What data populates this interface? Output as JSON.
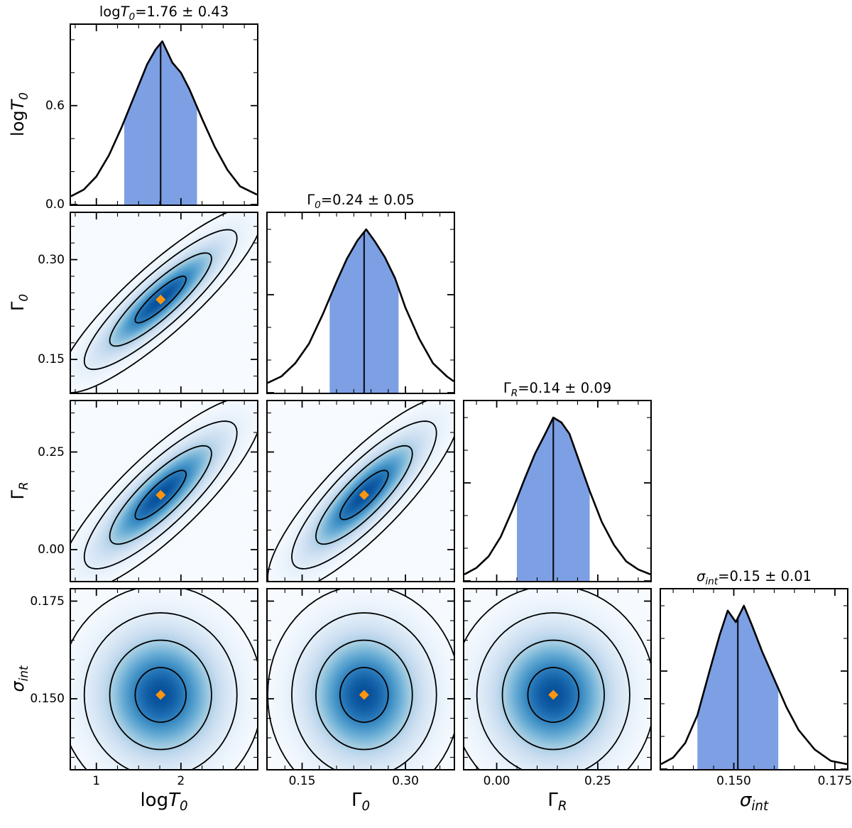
{
  "chart_data": {
    "type": "corner",
    "description_visible": false,
    "parameters": [
      {
        "id": "logT0",
        "label": "log*T*_{0}",
        "title": "log*T*_{0}=1.76 ± 0.43",
        "mean": 1.76,
        "sigma": 0.43,
        "lim": [
          0.7,
          2.9
        ],
        "ticks": [
          1,
          2
        ],
        "tick_labels": [
          "1",
          "2"
        ],
        "minor_step": 0.25,
        "hist": {
          "x": [
            0.7,
            0.85,
            1.0,
            1.15,
            1.3,
            1.45,
            1.6,
            1.7,
            1.78,
            1.9,
            2.0,
            2.1,
            2.25,
            2.4,
            2.55,
            2.7,
            2.9
          ],
          "y": [
            0.05,
            0.09,
            0.17,
            0.3,
            0.47,
            0.66,
            0.85,
            0.94,
            0.99,
            0.86,
            0.8,
            0.7,
            0.52,
            0.35,
            0.21,
            0.11,
            0.06
          ],
          "ylim": [
            0,
            1.09
          ],
          "yticks": [
            0.0,
            0.6
          ],
          "ytick_labels": [
            "0.0",
            "0.6"
          ],
          "y_minor_step": 0.2
        }
      },
      {
        "id": "G0",
        "label": "Γ_{0}",
        "title": "Γ_{0}=0.24 ± 0.05",
        "mean": 0.24,
        "sigma": 0.05,
        "lim": [
          0.1,
          0.37
        ],
        "ticks": [
          0.15,
          0.3
        ],
        "tick_labels": [
          "0.15",
          "0.30"
        ],
        "minor_step": 0.025,
        "hist": {
          "x": [
            0.1,
            0.12,
            0.14,
            0.16,
            0.18,
            0.2,
            0.215,
            0.23,
            0.243,
            0.255,
            0.27,
            0.285,
            0.3,
            0.32,
            0.34,
            0.36,
            0.37
          ],
          "y": [
            0.06,
            0.1,
            0.18,
            0.3,
            0.48,
            0.68,
            0.82,
            0.93,
            1.0,
            0.93,
            0.83,
            0.7,
            0.52,
            0.33,
            0.18,
            0.1,
            0.07
          ],
          "ylim": [
            0,
            1.1
          ],
          "yticks": [
            0.0,
            0.6
          ],
          "ytick_labels": null,
          "y_minor_step": 0.2
        }
      },
      {
        "id": "GR",
        "label": "Γ_{R}",
        "title": "Γ_{R}=0.14 ± 0.09",
        "mean": 0.14,
        "sigma": 0.09,
        "lim": [
          -0.08,
          0.38
        ],
        "ticks": [
          0.0,
          0.25
        ],
        "tick_labels": [
          "0.00",
          "0.25"
        ],
        "minor_step": 0.05,
        "hist": {
          "x": [
            -0.08,
            -0.05,
            -0.02,
            0.01,
            0.04,
            0.07,
            0.095,
            0.12,
            0.14,
            0.16,
            0.18,
            0.2,
            0.23,
            0.26,
            0.29,
            0.32,
            0.35,
            0.38
          ],
          "y": [
            0.04,
            0.08,
            0.15,
            0.27,
            0.44,
            0.63,
            0.78,
            0.9,
            1.0,
            0.97,
            0.9,
            0.76,
            0.55,
            0.36,
            0.22,
            0.12,
            0.07,
            0.04
          ],
          "ylim": [
            0,
            1.1
          ],
          "yticks": [
            0.0,
            0.6
          ],
          "ytick_labels": null,
          "y_minor_step": 0.2
        }
      },
      {
        "id": "sint",
        "label": "*σ*_{int}",
        "title": "*σ*_{int}=0.15 ± 0.01",
        "mean": 0.151,
        "sigma": 0.01,
        "lim": [
          0.132,
          0.178
        ],
        "ticks": [
          0.15,
          0.175
        ],
        "tick_labels": [
          "0.150",
          "0.175"
        ],
        "minor_step": 0.005,
        "hist": {
          "x": [
            0.132,
            0.135,
            0.138,
            0.141,
            0.144,
            0.1465,
            0.1485,
            0.1505,
            0.1525,
            0.1545,
            0.157,
            0.16,
            0.163,
            0.166,
            0.17,
            0.174,
            0.178
          ],
          "y": [
            0.03,
            0.07,
            0.16,
            0.33,
            0.6,
            0.82,
            0.97,
            0.9,
            1.0,
            0.88,
            0.72,
            0.55,
            0.38,
            0.24,
            0.12,
            0.05,
            0.03
          ],
          "ylim": [
            0,
            1.1
          ],
          "yticks": [
            0.0,
            0.6
          ],
          "ytick_labels": null,
          "y_minor_step": 0.2
        }
      }
    ],
    "correlations": [
      {
        "x": "logT0",
        "y": "G0",
        "rho": 0.88
      },
      {
        "x": "logT0",
        "y": "GR",
        "rho": 0.84
      },
      {
        "x": "G0",
        "y": "GR",
        "rho": 0.84
      },
      {
        "x": "logT0",
        "y": "sint",
        "rho": 0.0
      },
      {
        "x": "G0",
        "y": "sint",
        "rho": 0.0
      },
      {
        "x": "GR",
        "y": "sint",
        "rho": 0.0
      }
    ],
    "contour_levels_sigma": [
      0.7,
      1.4,
      2.1,
      2.8
    ],
    "marker": {
      "shape": "diamond",
      "color": "#ff950e"
    },
    "colors": {
      "density_colormap": "Blues",
      "contour": "#000000",
      "hist_line": "#000000",
      "hist_shade": "#7da0e4",
      "mean_line": "#10101a",
      "frame": "#000000"
    }
  }
}
